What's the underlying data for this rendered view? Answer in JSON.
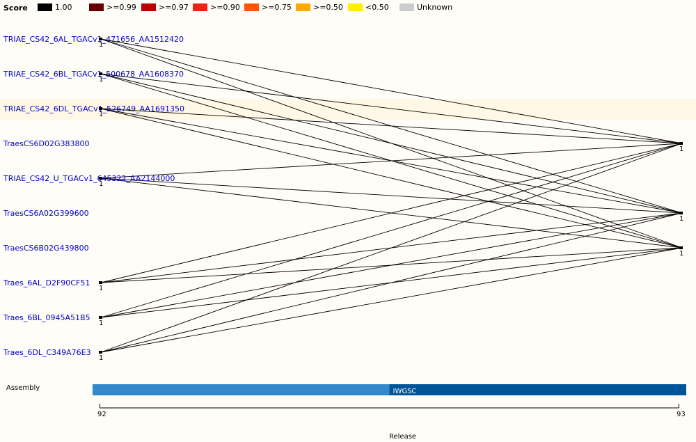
{
  "legend": {
    "title": "Score",
    "items": [
      {
        "label": "1.00",
        "color": "#000000"
      },
      {
        "label": ">=0.99",
        "color": "#660000"
      },
      {
        "label": ">=0.97",
        "color": "#bb0000"
      },
      {
        "label": ">=0.90",
        "color": "#ee2211"
      },
      {
        "label": ">=0.75",
        "color": "#ff5500"
      },
      {
        "label": ">=0.50",
        "color": "#ffaa00"
      },
      {
        "label": "<0.50",
        "color": "#ffee00"
      },
      {
        "label": "Unknown",
        "color": "#cccccc"
      }
    ]
  },
  "left_genes": [
    {
      "label": "TRIAE_CS42_6AL_TGACv1_471656_AA1512420",
      "count": "1"
    },
    {
      "label": "TRIAE_CS42_6BL_TGACv1_500678_AA1608370",
      "count": "1"
    },
    {
      "label": "TRIAE_CS42_6DL_TGACv1_526749_AA1691350",
      "count": "1"
    },
    {
      "label": "TraesCS6D02G383800",
      "count": ""
    },
    {
      "label": "TRIAE_CS42_U_TGACv1_645322_AA2144000",
      "count": "1"
    },
    {
      "label": "TraesCS6A02G399600",
      "count": ""
    },
    {
      "label": "TraesCS6B02G439800",
      "count": ""
    },
    {
      "label": "Traes_6AL_D2F90CF51",
      "count": "1"
    },
    {
      "label": "Traes_6BL_0945A51B5",
      "count": "1"
    },
    {
      "label": "Traes_6DL_C349A76E3",
      "count": "1"
    }
  ],
  "right_genes": [
    {
      "row": 3,
      "count": "1"
    },
    {
      "row": 5,
      "count": "1"
    },
    {
      "row": 6,
      "count": "1"
    }
  ],
  "links": [
    [
      0,
      3
    ],
    [
      0,
      5
    ],
    [
      0,
      6
    ],
    [
      1,
      3
    ],
    [
      1,
      5
    ],
    [
      1,
      6
    ],
    [
      2,
      3
    ],
    [
      2,
      5
    ],
    [
      2,
      6
    ],
    [
      4,
      3
    ],
    [
      4,
      5
    ],
    [
      4,
      6
    ],
    [
      7,
      3
    ],
    [
      7,
      5
    ],
    [
      7,
      6
    ],
    [
      8,
      3
    ],
    [
      8,
      5
    ],
    [
      8,
      6
    ],
    [
      9,
      3
    ],
    [
      9,
      5
    ],
    [
      9,
      6
    ]
  ],
  "highlight_row": 2,
  "link_color": "#000000",
  "assembly": {
    "label": "Assembly",
    "segments": [
      {
        "label": "",
        "color": "#3388cc",
        "from": 92,
        "to": 92.5
      },
      {
        "label": "IWGSC",
        "color": "#005599",
        "from": 92.5,
        "to": 93
      }
    ]
  },
  "release_axis": {
    "ticks": [
      "92",
      "93"
    ],
    "label": "Release"
  }
}
